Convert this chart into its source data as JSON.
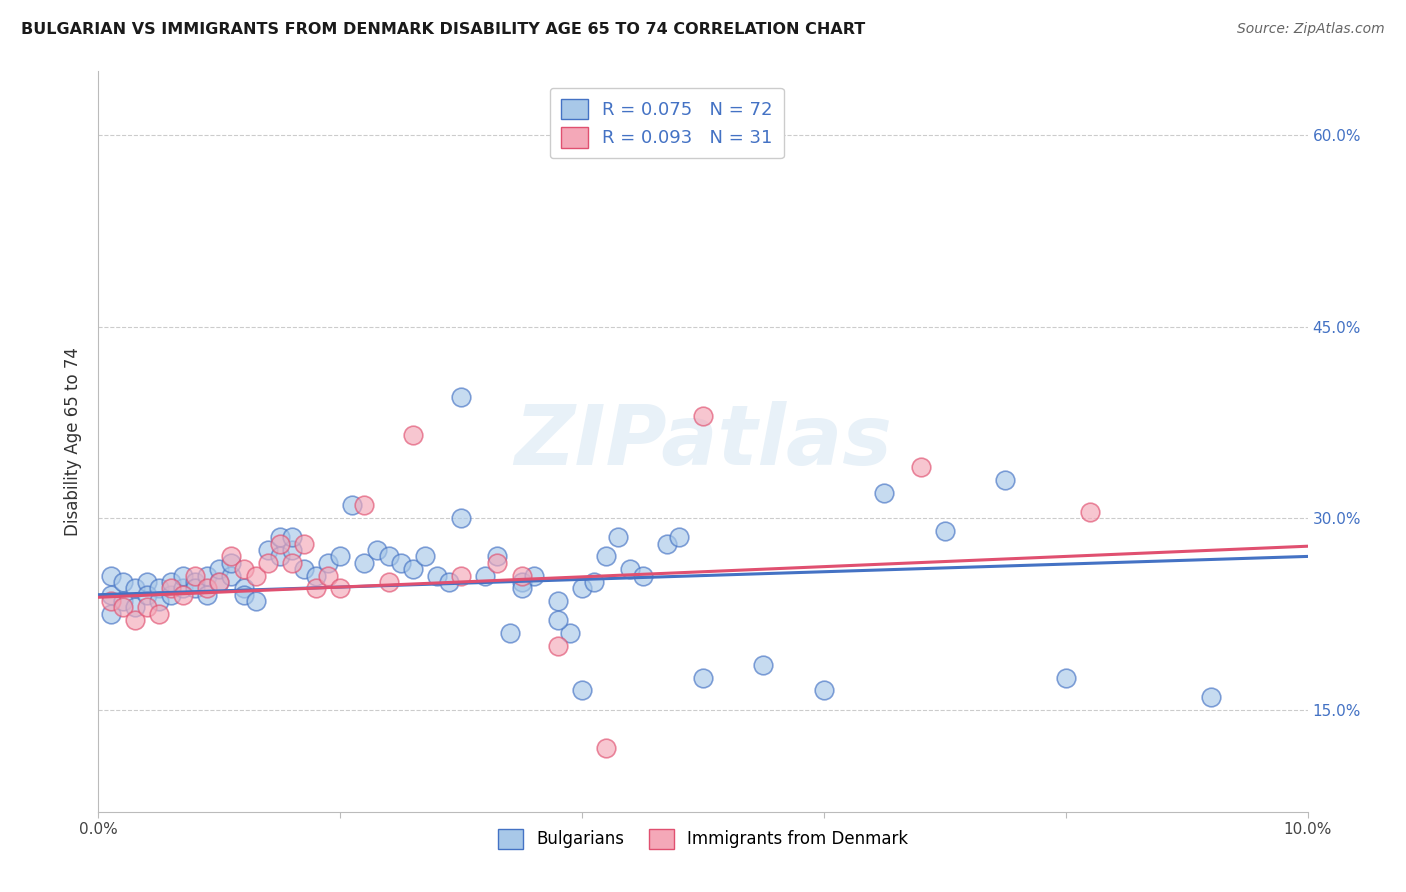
{
  "title": "BULGARIAN VS IMMIGRANTS FROM DENMARK DISABILITY AGE 65 TO 74 CORRELATION CHART",
  "source": "Source: ZipAtlas.com",
  "ylabel": "Disability Age 65 to 74",
  "xlim": [
    0.0,
    0.1
  ],
  "ylim": [
    0.07,
    0.65
  ],
  "yticks_right": [
    0.15,
    0.3,
    0.45,
    0.6
  ],
  "ytick_labels_right": [
    "15.0%",
    "30.0%",
    "45.0%",
    "60.0%"
  ],
  "r_bulgarian": 0.075,
  "n_bulgarian": 72,
  "r_denmark": 0.093,
  "n_denmark": 31,
  "color_bulgarian": "#a8c8e8",
  "color_denmark": "#f4a8b8",
  "trendline_color_bulgarian": "#4472c4",
  "trendline_color_denmark": "#e05070",
  "watermark": "ZIPatlas",
  "legend_labels": [
    "Bulgarians",
    "Immigrants from Denmark"
  ],
  "bulgarians_x": [
    0.001,
    0.001,
    0.001,
    0.002,
    0.002,
    0.003,
    0.003,
    0.004,
    0.004,
    0.005,
    0.005,
    0.006,
    0.006,
    0.007,
    0.007,
    0.008,
    0.008,
    0.009,
    0.009,
    0.01,
    0.01,
    0.011,
    0.011,
    0.012,
    0.012,
    0.013,
    0.014,
    0.015,
    0.015,
    0.016,
    0.016,
    0.017,
    0.018,
    0.019,
    0.02,
    0.021,
    0.022,
    0.023,
    0.024,
    0.025,
    0.026,
    0.027,
    0.028,
    0.029,
    0.03,
    0.032,
    0.033,
    0.034,
    0.035,
    0.036,
    0.038,
    0.039,
    0.04,
    0.041,
    0.042,
    0.043,
    0.044,
    0.045,
    0.047,
    0.048,
    0.03,
    0.035,
    0.038,
    0.04,
    0.05,
    0.055,
    0.06,
    0.065,
    0.07,
    0.075,
    0.08,
    0.092
  ],
  "bulgarians_y": [
    0.255,
    0.24,
    0.225,
    0.25,
    0.235,
    0.245,
    0.23,
    0.25,
    0.24,
    0.245,
    0.235,
    0.24,
    0.25,
    0.245,
    0.255,
    0.25,
    0.245,
    0.24,
    0.255,
    0.25,
    0.26,
    0.255,
    0.265,
    0.245,
    0.24,
    0.235,
    0.275,
    0.285,
    0.27,
    0.275,
    0.285,
    0.26,
    0.255,
    0.265,
    0.27,
    0.31,
    0.265,
    0.275,
    0.27,
    0.265,
    0.26,
    0.27,
    0.255,
    0.25,
    0.3,
    0.255,
    0.27,
    0.21,
    0.25,
    0.255,
    0.235,
    0.21,
    0.245,
    0.25,
    0.27,
    0.285,
    0.26,
    0.255,
    0.28,
    0.285,
    0.395,
    0.245,
    0.22,
    0.165,
    0.175,
    0.185,
    0.165,
    0.32,
    0.29,
    0.33,
    0.175,
    0.16
  ],
  "denmark_x": [
    0.001,
    0.002,
    0.003,
    0.004,
    0.005,
    0.006,
    0.007,
    0.008,
    0.009,
    0.01,
    0.011,
    0.012,
    0.013,
    0.014,
    0.015,
    0.016,
    0.017,
    0.018,
    0.019,
    0.02,
    0.022,
    0.024,
    0.026,
    0.03,
    0.033,
    0.035,
    0.038,
    0.042,
    0.05,
    0.068,
    0.082
  ],
  "denmark_y": [
    0.235,
    0.23,
    0.22,
    0.23,
    0.225,
    0.245,
    0.24,
    0.255,
    0.245,
    0.25,
    0.27,
    0.26,
    0.255,
    0.265,
    0.28,
    0.265,
    0.28,
    0.245,
    0.255,
    0.245,
    0.31,
    0.25,
    0.365,
    0.255,
    0.265,
    0.255,
    0.2,
    0.12,
    0.38,
    0.34,
    0.305
  ],
  "trendline_bulgarian_x0": 0.0,
  "trendline_bulgarian_y0": 0.24,
  "trendline_bulgarian_x1": 0.1,
  "trendline_bulgarian_y1": 0.27,
  "trendline_denmark_x0": 0.0,
  "trendline_denmark_y0": 0.238,
  "trendline_denmark_x1": 0.1,
  "trendline_denmark_y1": 0.278
}
